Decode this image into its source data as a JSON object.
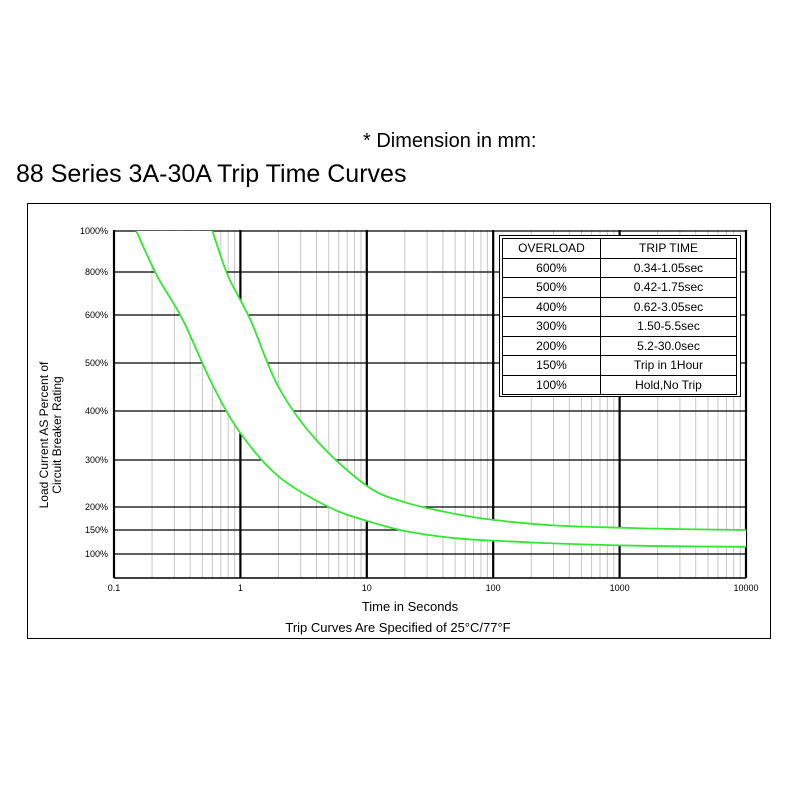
{
  "header": {
    "dimension_note": "* Dimension in mm:",
    "title": "88 Series 3A-30A Trip Time Curves"
  },
  "table": {
    "headers": [
      "OVERLOAD",
      "TRIP TIME"
    ],
    "rows": [
      [
        "600%",
        "0.34-1.05sec"
      ],
      [
        "500%",
        "0.42-1.75sec"
      ],
      [
        "400%",
        "0.62-3.05sec"
      ],
      [
        "300%",
        "1.50-5.5sec"
      ],
      [
        "200%",
        "5.2-30.0sec"
      ],
      [
        "150%",
        "Trip in 1Hour"
      ],
      [
        "100%",
        "Hold,No Trip"
      ]
    ]
  },
  "colors": {
    "curve": "#33e633",
    "grid_major": "#000000",
    "grid_minor": "#c8c8c8"
  },
  "chart_data": {
    "type": "line",
    "title": "",
    "xlabel": "Time in Seconds",
    "ylabel": "Load Current AS Percent of Circuit Breaker Rating",
    "footnote": "Trip Curves Are Specified of 25°C/77°F",
    "x_scale": "log",
    "xlim": [
      0.1,
      10000
    ],
    "x_ticks": [
      0.1,
      1,
      10,
      100,
      1000,
      10000
    ],
    "x_tick_labels": [
      "0.1",
      "1",
      "10",
      "100",
      "1000",
      "10000"
    ],
    "y_ticks": [
      100,
      150,
      200,
      300,
      400,
      500,
      600,
      800,
      1000
    ],
    "y_tick_labels": [
      "100%",
      "150%",
      "200%",
      "300%",
      "400%",
      "500%",
      "600%",
      "800%",
      "1000%"
    ],
    "grid": true,
    "legend": "none",
    "series": [
      {
        "x": [
          0.15,
          0.22,
          0.35,
          0.6,
          1,
          2,
          5,
          10,
          20,
          50,
          100,
          300,
          1000,
          3000,
          10000
        ],
        "y": [
          1000,
          780,
          590,
          455,
          355,
          265,
          200,
          170,
          148,
          133,
          128,
          122,
          118,
          116,
          115
        ]
      },
      {
        "x": [
          0.6,
          0.8,
          1.2,
          2,
          4,
          10,
          20,
          50,
          100,
          300,
          1000,
          3000,
          10000
        ],
        "y": [
          1000,
          780,
          590,
          450,
          340,
          245,
          210,
          185,
          172,
          160,
          155,
          152,
          150
        ]
      }
    ]
  }
}
